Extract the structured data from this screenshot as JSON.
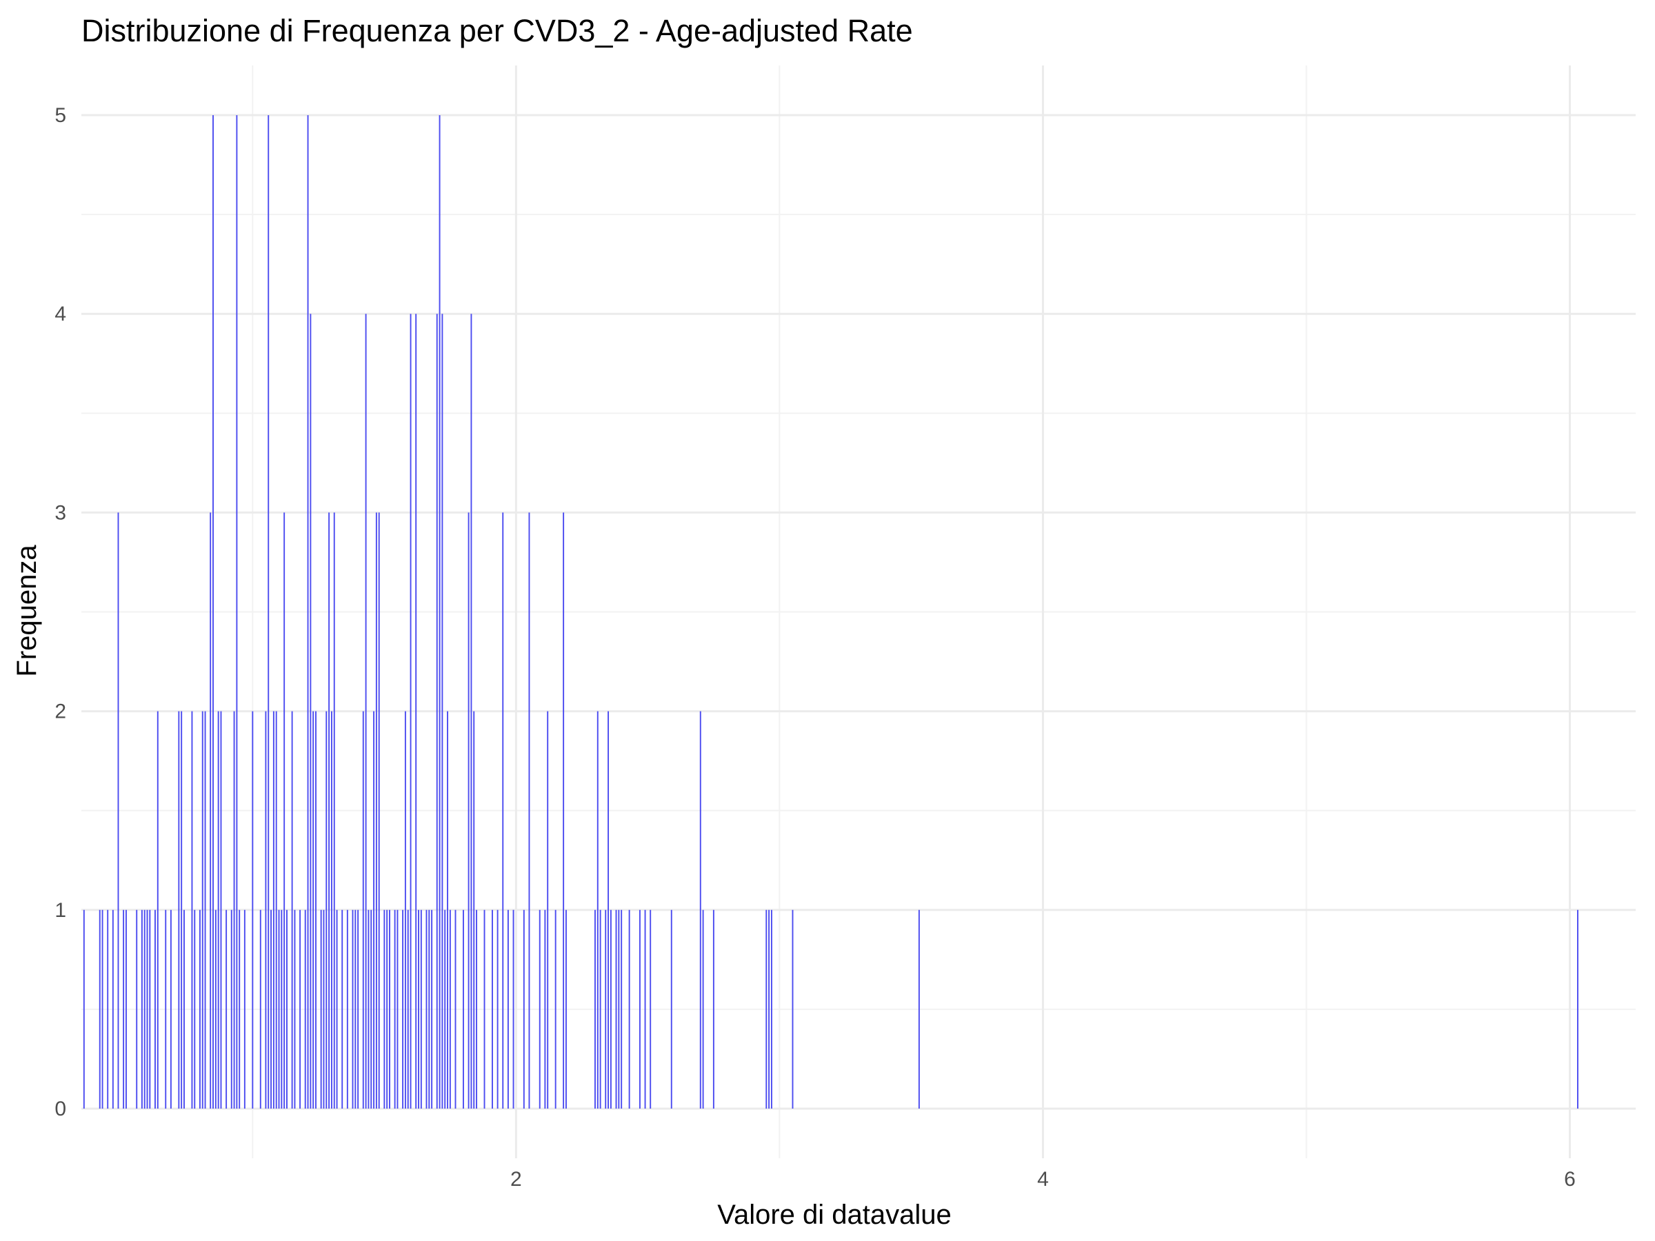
{
  "chart_data": {
    "type": "bar",
    "title": "Distribuzione di Frequenza per CVD3_2 - Age-adjusted Rate",
    "xlabel": "Valore di datavalue",
    "ylabel": "Frequenza",
    "xlim": [
      0.35,
      6.25
    ],
    "ylim": [
      -0.25,
      5.25
    ],
    "x_ticks": [
      2,
      4,
      6
    ],
    "y_ticks": [
      0,
      1,
      2,
      3,
      4,
      5
    ],
    "bin_width": 0.005,
    "grid": true,
    "legend": "none",
    "bar_color": "#4b4bf0",
    "bars": [
      {
        "x": 0.36,
        "y": 1
      },
      {
        "x": 0.42,
        "y": 1
      },
      {
        "x": 0.43,
        "y": 1
      },
      {
        "x": 0.45,
        "y": 1
      },
      {
        "x": 0.47,
        "y": 1
      },
      {
        "x": 0.49,
        "y": 3
      },
      {
        "x": 0.51,
        "y": 1
      },
      {
        "x": 0.52,
        "y": 1
      },
      {
        "x": 0.56,
        "y": 1
      },
      {
        "x": 0.58,
        "y": 1
      },
      {
        "x": 0.59,
        "y": 1
      },
      {
        "x": 0.6,
        "y": 1
      },
      {
        "x": 0.61,
        "y": 1
      },
      {
        "x": 0.63,
        "y": 1
      },
      {
        "x": 0.64,
        "y": 2
      },
      {
        "x": 0.67,
        "y": 1
      },
      {
        "x": 0.69,
        "y": 1
      },
      {
        "x": 0.72,
        "y": 2
      },
      {
        "x": 0.73,
        "y": 2
      },
      {
        "x": 0.74,
        "y": 1
      },
      {
        "x": 0.77,
        "y": 2
      },
      {
        "x": 0.78,
        "y": 1
      },
      {
        "x": 0.8,
        "y": 1
      },
      {
        "x": 0.81,
        "y": 2
      },
      {
        "x": 0.82,
        "y": 2
      },
      {
        "x": 0.84,
        "y": 3
      },
      {
        "x": 0.85,
        "y": 5
      },
      {
        "x": 0.86,
        "y": 1
      },
      {
        "x": 0.87,
        "y": 2
      },
      {
        "x": 0.88,
        "y": 2
      },
      {
        "x": 0.9,
        "y": 1
      },
      {
        "x": 0.92,
        "y": 1
      },
      {
        "x": 0.93,
        "y": 2
      },
      {
        "x": 0.94,
        "y": 5
      },
      {
        "x": 0.95,
        "y": 1
      },
      {
        "x": 0.97,
        "y": 1
      },
      {
        "x": 1.0,
        "y": 2
      },
      {
        "x": 1.03,
        "y": 1
      },
      {
        "x": 1.05,
        "y": 2
      },
      {
        "x": 1.06,
        "y": 5
      },
      {
        "x": 1.07,
        "y": 1
      },
      {
        "x": 1.08,
        "y": 2
      },
      {
        "x": 1.09,
        "y": 2
      },
      {
        "x": 1.1,
        "y": 1
      },
      {
        "x": 1.11,
        "y": 1
      },
      {
        "x": 1.12,
        "y": 3
      },
      {
        "x": 1.13,
        "y": 1
      },
      {
        "x": 1.15,
        "y": 2
      },
      {
        "x": 1.16,
        "y": 1
      },
      {
        "x": 1.18,
        "y": 1
      },
      {
        "x": 1.2,
        "y": 1
      },
      {
        "x": 1.21,
        "y": 5
      },
      {
        "x": 1.22,
        "y": 4
      },
      {
        "x": 1.23,
        "y": 2
      },
      {
        "x": 1.24,
        "y": 2
      },
      {
        "x": 1.26,
        "y": 1
      },
      {
        "x": 1.27,
        "y": 1
      },
      {
        "x": 1.28,
        "y": 2
      },
      {
        "x": 1.29,
        "y": 3
      },
      {
        "x": 1.3,
        "y": 2
      },
      {
        "x": 1.31,
        "y": 3
      },
      {
        "x": 1.32,
        "y": 1
      },
      {
        "x": 1.34,
        "y": 1
      },
      {
        "x": 1.36,
        "y": 1
      },
      {
        "x": 1.38,
        "y": 1
      },
      {
        "x": 1.39,
        "y": 1
      },
      {
        "x": 1.4,
        "y": 1
      },
      {
        "x": 1.42,
        "y": 2
      },
      {
        "x": 1.43,
        "y": 4
      },
      {
        "x": 1.44,
        "y": 1
      },
      {
        "x": 1.45,
        "y": 1
      },
      {
        "x": 1.46,
        "y": 2
      },
      {
        "x": 1.47,
        "y": 3
      },
      {
        "x": 1.48,
        "y": 3
      },
      {
        "x": 1.5,
        "y": 1
      },
      {
        "x": 1.51,
        "y": 1
      },
      {
        "x": 1.52,
        "y": 1
      },
      {
        "x": 1.54,
        "y": 1
      },
      {
        "x": 1.55,
        "y": 1
      },
      {
        "x": 1.57,
        "y": 1
      },
      {
        "x": 1.58,
        "y": 2
      },
      {
        "x": 1.59,
        "y": 1
      },
      {
        "x": 1.6,
        "y": 4
      },
      {
        "x": 1.62,
        "y": 4
      },
      {
        "x": 1.63,
        "y": 1
      },
      {
        "x": 1.64,
        "y": 1
      },
      {
        "x": 1.66,
        "y": 1
      },
      {
        "x": 1.67,
        "y": 1
      },
      {
        "x": 1.68,
        "y": 1
      },
      {
        "x": 1.7,
        "y": 4
      },
      {
        "x": 1.71,
        "y": 5
      },
      {
        "x": 1.72,
        "y": 4
      },
      {
        "x": 1.73,
        "y": 1
      },
      {
        "x": 1.74,
        "y": 2
      },
      {
        "x": 1.75,
        "y": 1
      },
      {
        "x": 1.77,
        "y": 1
      },
      {
        "x": 1.8,
        "y": 1
      },
      {
        "x": 1.82,
        "y": 3
      },
      {
        "x": 1.83,
        "y": 4
      },
      {
        "x": 1.84,
        "y": 2
      },
      {
        "x": 1.85,
        "y": 1
      },
      {
        "x": 1.88,
        "y": 1
      },
      {
        "x": 1.91,
        "y": 1
      },
      {
        "x": 1.93,
        "y": 1
      },
      {
        "x": 1.95,
        "y": 3
      },
      {
        "x": 1.97,
        "y": 1
      },
      {
        "x": 1.99,
        "y": 1
      },
      {
        "x": 2.03,
        "y": 1
      },
      {
        "x": 2.05,
        "y": 3
      },
      {
        "x": 2.09,
        "y": 1
      },
      {
        "x": 2.11,
        "y": 1
      },
      {
        "x": 2.12,
        "y": 2
      },
      {
        "x": 2.15,
        "y": 1
      },
      {
        "x": 2.18,
        "y": 3
      },
      {
        "x": 2.19,
        "y": 1
      },
      {
        "x": 2.3,
        "y": 1
      },
      {
        "x": 2.31,
        "y": 2
      },
      {
        "x": 2.32,
        "y": 1
      },
      {
        "x": 2.34,
        "y": 1
      },
      {
        "x": 2.35,
        "y": 2
      },
      {
        "x": 2.36,
        "y": 1
      },
      {
        "x": 2.38,
        "y": 1
      },
      {
        "x": 2.39,
        "y": 1
      },
      {
        "x": 2.4,
        "y": 1
      },
      {
        "x": 2.43,
        "y": 1
      },
      {
        "x": 2.47,
        "y": 1
      },
      {
        "x": 2.49,
        "y": 1
      },
      {
        "x": 2.51,
        "y": 1
      },
      {
        "x": 2.59,
        "y": 1
      },
      {
        "x": 2.7,
        "y": 2
      },
      {
        "x": 2.71,
        "y": 1
      },
      {
        "x": 2.75,
        "y": 1
      },
      {
        "x": 2.95,
        "y": 1
      },
      {
        "x": 2.96,
        "y": 1
      },
      {
        "x": 2.97,
        "y": 1
      },
      {
        "x": 3.05,
        "y": 1
      },
      {
        "x": 3.53,
        "y": 1
      },
      {
        "x": 6.03,
        "y": 1
      }
    ]
  }
}
